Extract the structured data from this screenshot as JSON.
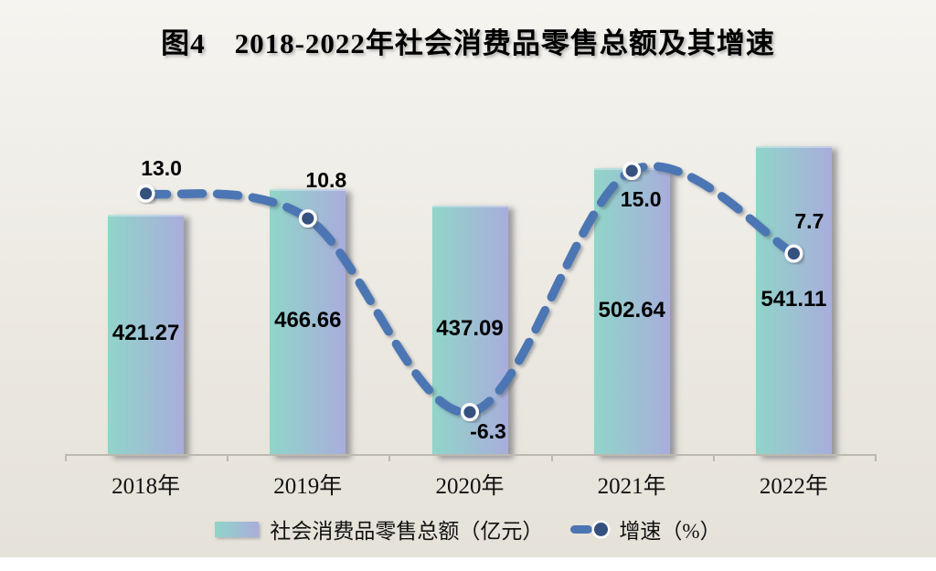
{
  "chart_data": {
    "type": "combo-bar-line",
    "title": "图4　2018-2022年社会消费品零售总额及其增速",
    "categories": [
      "2018年",
      "2019年",
      "2020年",
      "2021年",
      "2022年"
    ],
    "series": [
      {
        "name": "社会消费品零售总额（亿元）",
        "type": "bar",
        "values": [
          421.27,
          466.66,
          437.09,
          502.64,
          541.11
        ],
        "labels": [
          "421.27",
          "466.66",
          "437.09",
          "502.64",
          "541.11"
        ]
      },
      {
        "name": "增速（%）",
        "type": "line",
        "values": [
          13.0,
          10.8,
          -6.3,
          15.0,
          7.7
        ],
        "labels": [
          "13.0",
          "10.8",
          "-6.3",
          "15.0",
          "7.7"
        ]
      }
    ],
    "ylim": [
      0,
      640
    ],
    "y2lim": [
      -10,
      16
    ],
    "grid": false,
    "legend_position": "bottom",
    "colors": {
      "background_top": "#f5f4f0",
      "background_bottom": "#e5e2d9",
      "bar_gradient_start": "#90d5c9",
      "bar_gradient_end": "#a9addc",
      "line": "#4b76b3",
      "marker_fill": "#34517e",
      "marker_ring": "#ffffff",
      "axis": "#bcb9b1",
      "text": "#000000"
    }
  }
}
